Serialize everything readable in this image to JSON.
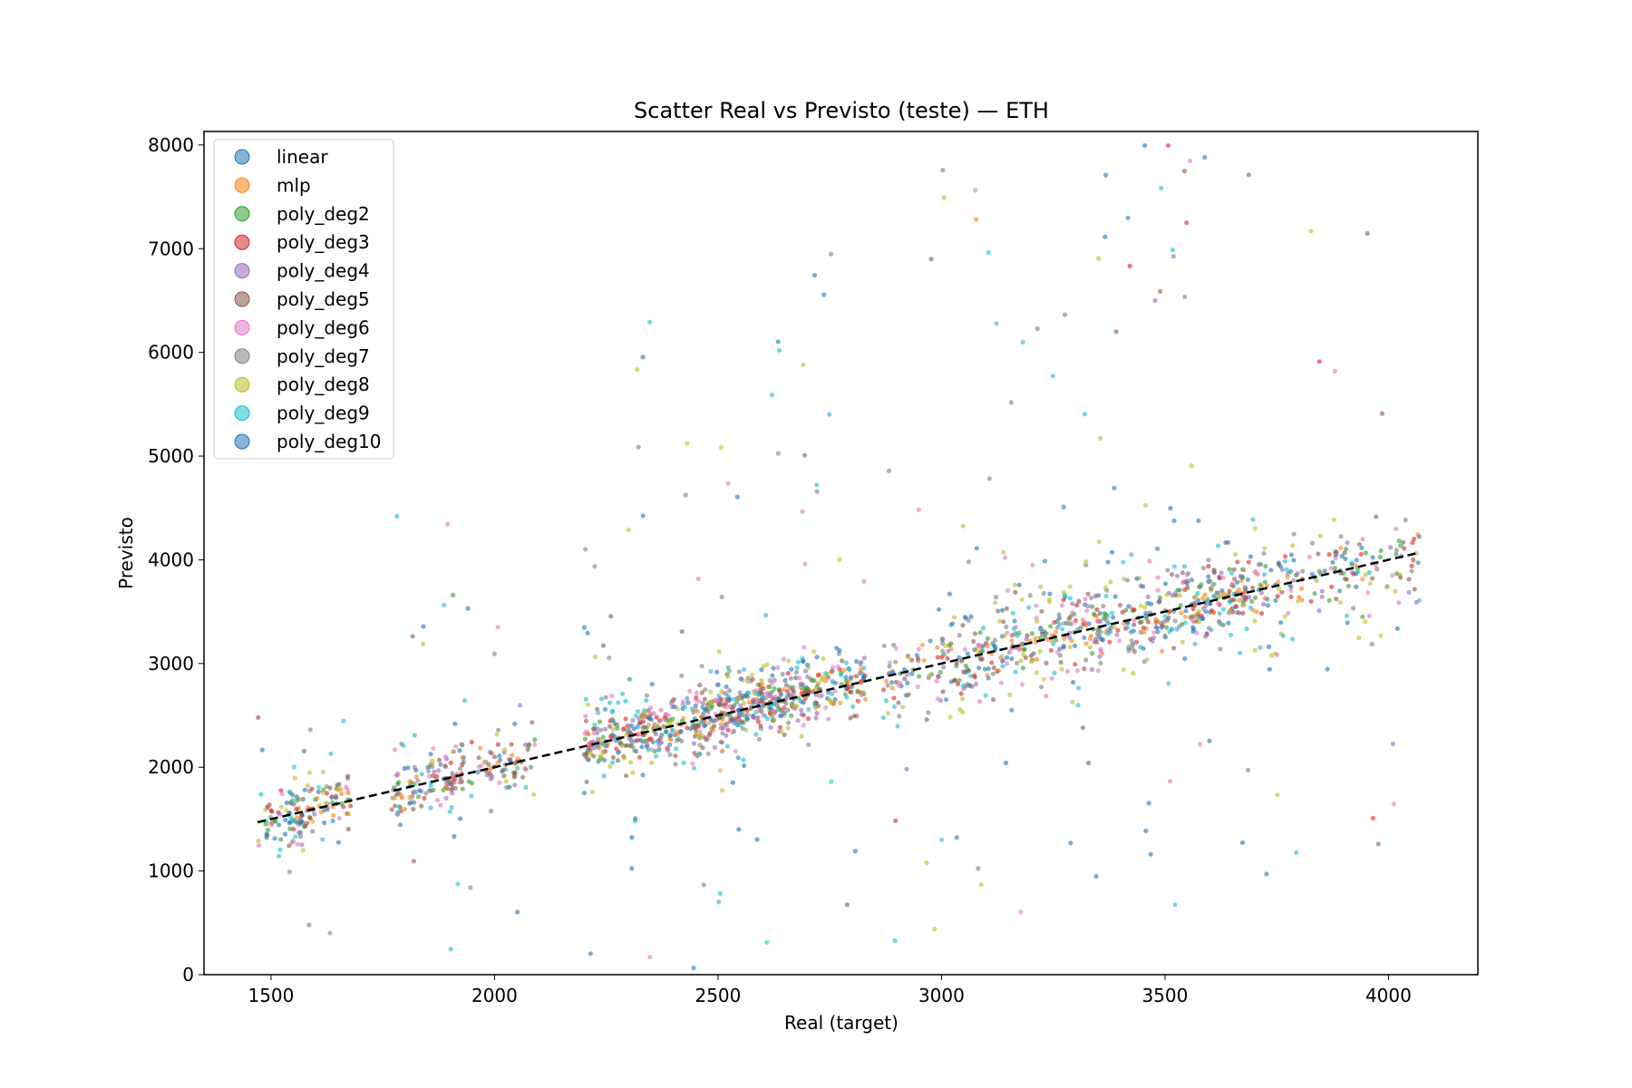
{
  "chart_data": {
    "type": "scatter",
    "title": "Scatter Real vs Previsto (teste) — ETH",
    "xlabel": "Real (target)",
    "ylabel": "Previsto",
    "xlim": [
      1350,
      4200
    ],
    "ylim": [
      0,
      8130
    ],
    "xticks": [
      1500,
      2000,
      2500,
      3000,
      3500,
      4000
    ],
    "yticks": [
      0,
      1000,
      2000,
      3000,
      4000,
      5000,
      6000,
      7000,
      8000
    ],
    "grid": false,
    "legend_position": "upper-left",
    "series": [
      {
        "name": "linear",
        "color": "#1f77b4",
        "spread": 160,
        "outlier_rate": 0.02,
        "seed": 11
      },
      {
        "name": "mlp",
        "color": "#ff7f0e",
        "spread": 130,
        "outlier_rate": 0.01,
        "seed": 23
      },
      {
        "name": "poly_deg2",
        "color": "#2ca02c",
        "spread": 150,
        "outlier_rate": 0.02,
        "seed": 37
      },
      {
        "name": "poly_deg3",
        "color": "#d62728",
        "spread": 180,
        "outlier_rate": 0.04,
        "seed": 41
      },
      {
        "name": "poly_deg4",
        "color": "#9467bd",
        "spread": 220,
        "outlier_rate": 0.06,
        "seed": 53
      },
      {
        "name": "poly_deg5",
        "color": "#8c564b",
        "spread": 260,
        "outlier_rate": 0.08,
        "seed": 67
      },
      {
        "name": "poly_deg6",
        "color": "#e377c2",
        "spread": 320,
        "outlier_rate": 0.14,
        "seed": 71
      },
      {
        "name": "poly_deg7",
        "color": "#7f7f7f",
        "spread": 340,
        "outlier_rate": 0.14,
        "seed": 83
      },
      {
        "name": "poly_deg8",
        "color": "#bcbd22",
        "spread": 360,
        "outlier_rate": 0.16,
        "seed": 97
      },
      {
        "name": "poly_deg9",
        "color": "#17becf",
        "spread": 380,
        "outlier_rate": 0.18,
        "seed": 101
      },
      {
        "name": "poly_deg10",
        "color": "#1f77b4",
        "spread": 400,
        "outlier_rate": 0.2,
        "seed": 113
      }
    ],
    "reference_line": {
      "x": [
        1470,
        4070
      ],
      "y": [
        1470,
        4070
      ],
      "style": "dashed",
      "color": "#000000"
    }
  }
}
